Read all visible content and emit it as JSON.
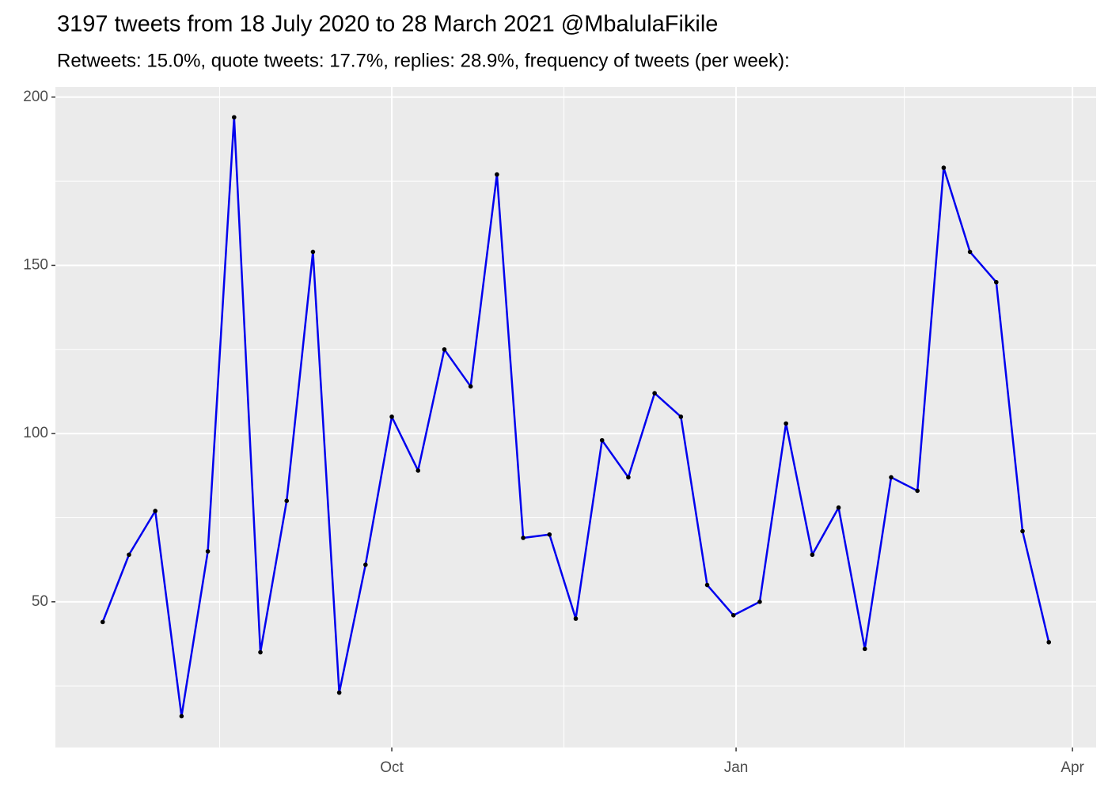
{
  "chart_data": {
    "type": "line",
    "title": "3197 tweets from 18 July 2020 to 28 March 2021 @MbalulaFikile",
    "subtitle": "Retweets: 15.0%, quote tweets: 17.7%, replies: 28.9%, frequency of tweets (per week):",
    "x": [
      0,
      1,
      2,
      3,
      4,
      5,
      6,
      7,
      8,
      9,
      10,
      11,
      12,
      13,
      14,
      15,
      16,
      17,
      18,
      19,
      20,
      21,
      22,
      23,
      24,
      25,
      26,
      27,
      28,
      29,
      30,
      31,
      32,
      33,
      34,
      35,
      36
    ],
    "series": [
      {
        "color": "#0000ee",
        "point_color": "#000000",
        "values": [
          44,
          64,
          77,
          16,
          65,
          194,
          35,
          80,
          154,
          23,
          61,
          105,
          89,
          125,
          114,
          177,
          69,
          70,
          45,
          98,
          87,
          112,
          105,
          55,
          46,
          50,
          103,
          64,
          78,
          36,
          87,
          83,
          179,
          154,
          145,
          71,
          38
        ]
      }
    ],
    "xlim": [
      -1.8,
      37.8
    ],
    "xticks": [
      {
        "value": 11,
        "label": "Oct"
      },
      {
        "value": 24.1,
        "label": "Jan"
      },
      {
        "value": 36.9,
        "label": "Apr"
      }
    ],
    "ylim": [
      6.7,
      203
    ],
    "yticks": [
      50,
      100,
      150,
      200
    ],
    "grid": true
  }
}
